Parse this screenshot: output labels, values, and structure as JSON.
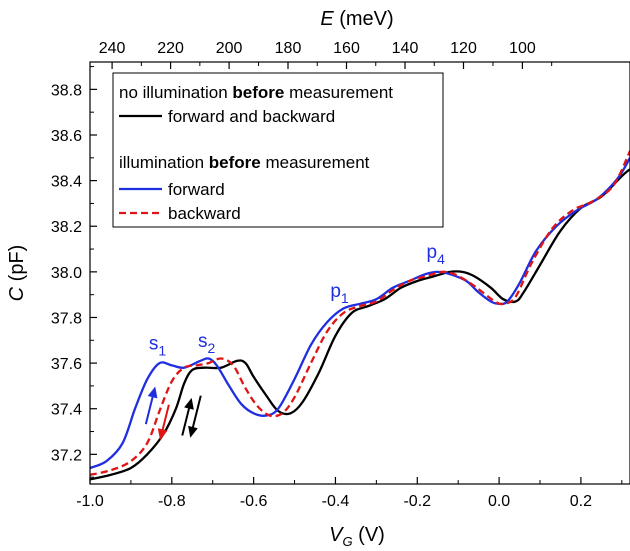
{
  "chart_data": {
    "type": "line",
    "xlabel": {
      "main": "V",
      "sub": "G",
      "unit": " (V)"
    },
    "ylabel": {
      "main": "C",
      "unit": " (pF)"
    },
    "x2label": {
      "main": "E",
      "unit": " (meV)"
    },
    "xlim": [
      -1.0,
      0.32
    ],
    "ylim": [
      37.07,
      38.92
    ],
    "x_ticks": [
      -1.0,
      -0.8,
      -0.6,
      -0.4,
      -0.2,
      0.0,
      0.2
    ],
    "x_tick_labels": [
      "-1.0",
      "-0.8",
      "-0.6",
      "-0.4",
      "-0.2",
      "0.0",
      "0.2"
    ],
    "y_ticks": [
      37.2,
      37.4,
      37.6,
      37.8,
      38.0,
      38.2,
      38.4,
      38.6,
      38.8
    ],
    "y_tick_labels": [
      "37.2",
      "37.4",
      "37.6",
      "37.8",
      "38.0",
      "38.2",
      "38.4",
      "38.6",
      "38.8"
    ],
    "top_axis": {
      "ticks": [
        240,
        220,
        200,
        180,
        160,
        140,
        120,
        100
      ],
      "tick_labels": [
        "240",
        "220",
        "200",
        "180",
        "160",
        "140",
        "120",
        "100"
      ],
      "tick_x_positions_vg": [
        -0.946,
        -0.803,
        -0.66,
        -0.516,
        -0.373,
        -0.23,
        -0.087,
        0.057
      ]
    },
    "legend": {
      "placement": "top-left",
      "group1_header": [
        "no illumination ",
        "before",
        " measurement"
      ],
      "group2_header": [
        "illumination ",
        "before",
        " measurement"
      ]
    },
    "series": [
      {
        "name": "forward and backward",
        "color": "#000000",
        "style": "solid",
        "points": [
          [
            -1.0,
            37.09
          ],
          [
            -0.95,
            37.11
          ],
          [
            -0.9,
            37.14
          ],
          [
            -0.86,
            37.2
          ],
          [
            -0.82,
            37.29
          ],
          [
            -0.79,
            37.4
          ],
          [
            -0.77,
            37.51
          ],
          [
            -0.75,
            37.57
          ],
          [
            -0.72,
            37.58
          ],
          [
            -0.68,
            37.58
          ],
          [
            -0.64,
            37.61
          ],
          [
            -0.62,
            37.6
          ],
          [
            -0.6,
            37.54
          ],
          [
            -0.57,
            37.46
          ],
          [
            -0.54,
            37.39
          ],
          [
            -0.51,
            37.38
          ],
          [
            -0.48,
            37.43
          ],
          [
            -0.44,
            37.56
          ],
          [
            -0.4,
            37.72
          ],
          [
            -0.36,
            37.82
          ],
          [
            -0.32,
            37.85
          ],
          [
            -0.28,
            37.88
          ],
          [
            -0.24,
            37.93
          ],
          [
            -0.2,
            37.96
          ],
          [
            -0.16,
            37.98
          ],
          [
            -0.12,
            38.0
          ],
          [
            -0.09,
            38.0
          ],
          [
            -0.06,
            37.98
          ],
          [
            -0.02,
            37.93
          ],
          [
            0.01,
            37.88
          ],
          [
            0.04,
            37.87
          ],
          [
            0.06,
            37.91
          ],
          [
            0.1,
            38.03
          ],
          [
            0.15,
            38.18
          ],
          [
            0.2,
            38.28
          ],
          [
            0.25,
            38.33
          ],
          [
            0.3,
            38.42
          ],
          [
            0.32,
            38.45
          ]
        ]
      },
      {
        "name": "forward",
        "color": "#1f2fe0",
        "style": "solid",
        "points": [
          [
            -1.0,
            37.14
          ],
          [
            -0.96,
            37.17
          ],
          [
            -0.92,
            37.25
          ],
          [
            -0.89,
            37.4
          ],
          [
            -0.86,
            37.53
          ],
          [
            -0.83,
            37.6
          ],
          [
            -0.8,
            37.59
          ],
          [
            -0.77,
            37.58
          ],
          [
            -0.73,
            37.61
          ],
          [
            -0.71,
            37.62
          ],
          [
            -0.69,
            37.59
          ],
          [
            -0.66,
            37.5
          ],
          [
            -0.63,
            37.42
          ],
          [
            -0.6,
            37.38
          ],
          [
            -0.57,
            37.37
          ],
          [
            -0.54,
            37.4
          ],
          [
            -0.5,
            37.53
          ],
          [
            -0.46,
            37.68
          ],
          [
            -0.42,
            37.78
          ],
          [
            -0.38,
            37.84
          ],
          [
            -0.34,
            37.86
          ],
          [
            -0.3,
            37.88
          ],
          [
            -0.26,
            37.93
          ],
          [
            -0.22,
            37.96
          ],
          [
            -0.18,
            37.99
          ],
          [
            -0.15,
            38.0
          ],
          [
            -0.12,
            37.99
          ],
          [
            -0.08,
            37.96
          ],
          [
            -0.05,
            37.91
          ],
          [
            -0.02,
            37.87
          ],
          [
            0.0,
            37.86
          ],
          [
            0.02,
            37.87
          ],
          [
            0.05,
            37.95
          ],
          [
            0.09,
            38.09
          ],
          [
            0.14,
            38.2
          ],
          [
            0.19,
            38.27
          ],
          [
            0.24,
            38.32
          ],
          [
            0.29,
            38.41
          ],
          [
            0.32,
            38.5
          ]
        ]
      },
      {
        "name": "backward",
        "color": "#e01414",
        "style": "dashed",
        "points": [
          [
            -1.0,
            37.11
          ],
          [
            -0.95,
            37.13
          ],
          [
            -0.9,
            37.17
          ],
          [
            -0.86,
            37.25
          ],
          [
            -0.83,
            37.39
          ],
          [
            -0.8,
            37.52
          ],
          [
            -0.77,
            37.58
          ],
          [
            -0.74,
            37.59
          ],
          [
            -0.71,
            37.6
          ],
          [
            -0.68,
            37.62
          ],
          [
            -0.65,
            37.59
          ],
          [
            -0.62,
            37.49
          ],
          [
            -0.59,
            37.41
          ],
          [
            -0.56,
            37.37
          ],
          [
            -0.53,
            37.38
          ],
          [
            -0.5,
            37.45
          ],
          [
            -0.46,
            37.6
          ],
          [
            -0.42,
            37.74
          ],
          [
            -0.38,
            37.82
          ],
          [
            -0.34,
            37.85
          ],
          [
            -0.3,
            37.87
          ],
          [
            -0.26,
            37.92
          ],
          [
            -0.22,
            37.96
          ],
          [
            -0.18,
            37.98
          ],
          [
            -0.14,
            38.0
          ],
          [
            -0.11,
            37.99
          ],
          [
            -0.07,
            37.95
          ],
          [
            -0.04,
            37.91
          ],
          [
            -0.01,
            37.87
          ],
          [
            0.01,
            37.86
          ],
          [
            0.04,
            37.89
          ],
          [
            0.08,
            38.04
          ],
          [
            0.13,
            38.19
          ],
          [
            0.18,
            38.27
          ],
          [
            0.23,
            38.31
          ],
          [
            0.28,
            38.38
          ],
          [
            0.32,
            38.53
          ]
        ]
      }
    ],
    "annotations": [
      {
        "main": "s",
        "sub": "1",
        "x": -0.835,
        "y": 37.66,
        "color": "#1f2fe0"
      },
      {
        "main": "s",
        "sub": "2",
        "x": -0.715,
        "y": 37.67,
        "color": "#1f2fe0"
      },
      {
        "main": "p",
        "sub": "1",
        "x": -0.39,
        "y": 37.89,
        "color": "#1f2fe0"
      },
      {
        "main": "p",
        "sub": "4",
        "x": -0.155,
        "y": 38.06,
        "color": "#1f2fe0"
      }
    ],
    "arrows": [
      {
        "x": -0.852,
        "y1": 37.33,
        "y2": 37.5,
        "dir": "up",
        "color": "#1f2fe0"
      },
      {
        "x": -0.818,
        "y1": 37.42,
        "y2": 37.26,
        "dir": "down",
        "color": "#e01414"
      },
      {
        "x": -0.763,
        "y1": 37.28,
        "y2": 37.45,
        "dir": "up",
        "color": "#000000"
      },
      {
        "x": -0.742,
        "y1": 37.46,
        "y2": 37.27,
        "dir": "down",
        "color": "#000000"
      }
    ]
  }
}
